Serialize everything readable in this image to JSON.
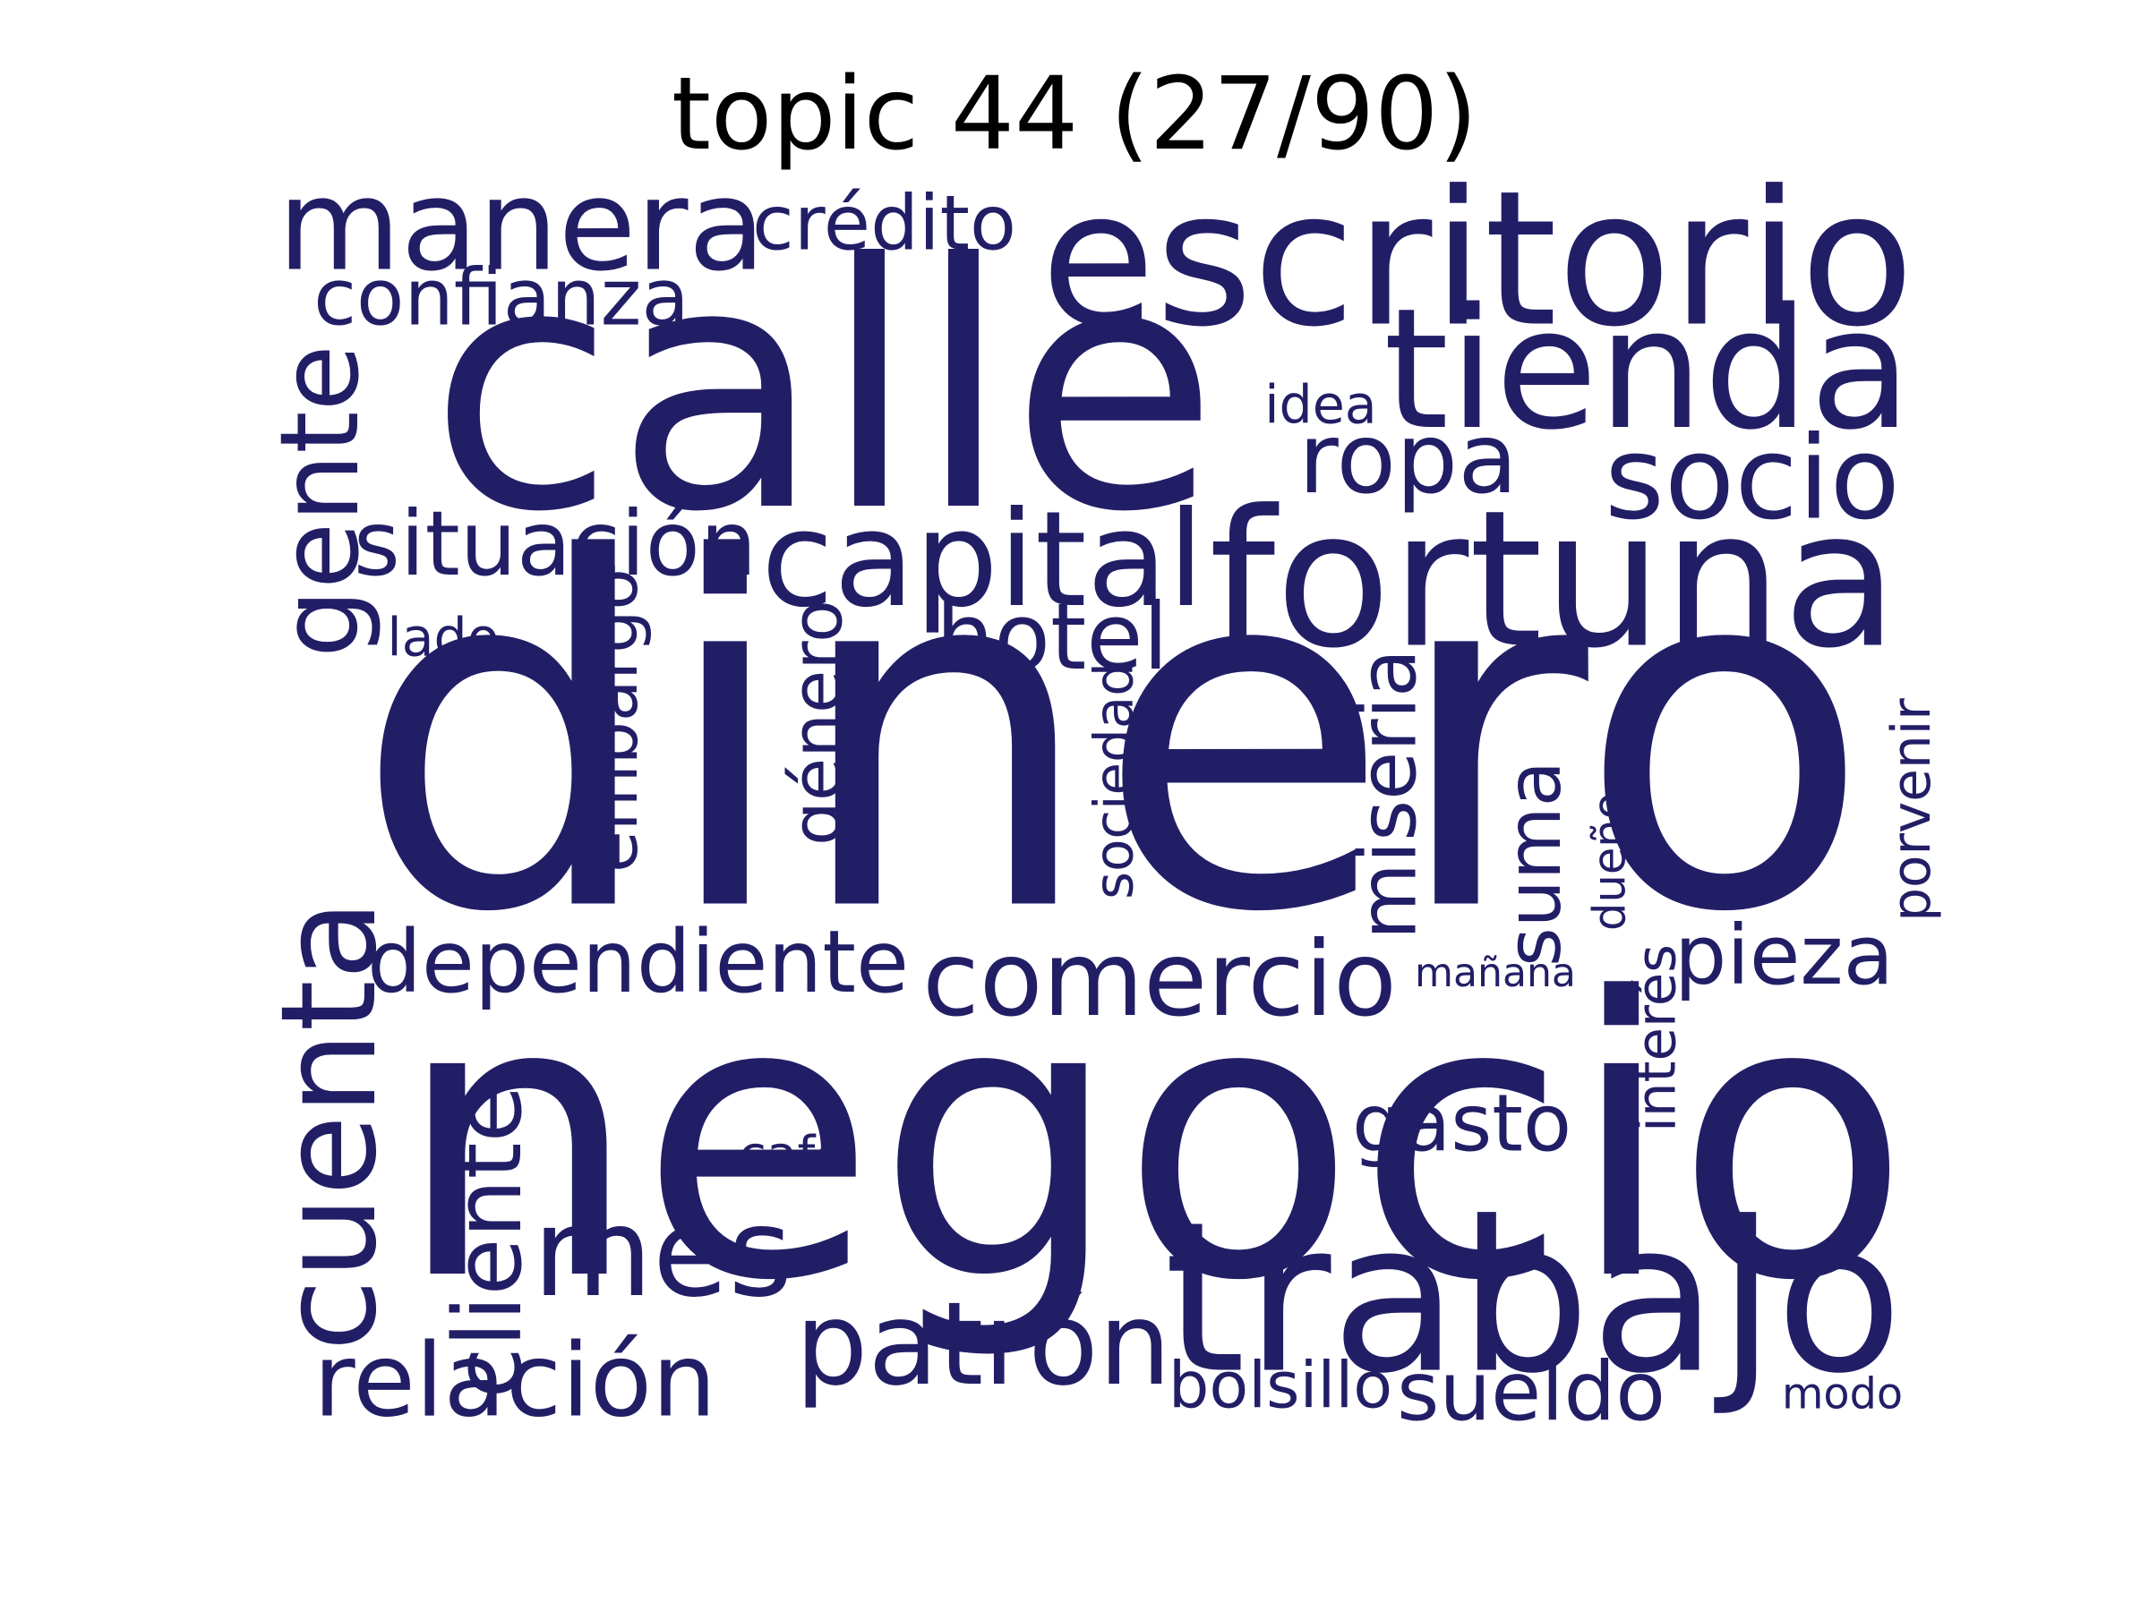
{
  "title": "topic 44 (27/90)",
  "word_color": "#221e66",
  "background": "#ffffff",
  "words": [
    {
      "id": "dinero",
      "text": "dinero"
    },
    {
      "id": "negocio",
      "text": "negocio"
    },
    {
      "id": "calle",
      "text": "calle"
    },
    {
      "id": "escritorio",
      "text": "escritorio"
    },
    {
      "id": "fortuna",
      "text": "fortuna"
    },
    {
      "id": "trabajo",
      "text": "trabajo"
    },
    {
      "id": "tienda",
      "text": "tienda"
    },
    {
      "id": "manera",
      "text": "manera"
    },
    {
      "id": "cuenta",
      "text": "cuenta"
    },
    {
      "id": "capital",
      "text": "capital"
    },
    {
      "id": "mes",
      "text": "mes"
    },
    {
      "id": "comercio",
      "text": "comercio"
    },
    {
      "id": "patron",
      "text": "patrón"
    },
    {
      "id": "socio",
      "text": "socio"
    },
    {
      "id": "gente",
      "text": "gente"
    },
    {
      "id": "ropa",
      "text": "ropa"
    },
    {
      "id": "dependiente",
      "text": "dependiente"
    },
    {
      "id": "relacion",
      "text": "relación"
    },
    {
      "id": "suma",
      "text": "suma"
    },
    {
      "id": "sueldo",
      "text": "sueldo"
    },
    {
      "id": "situacion",
      "text": "situación"
    },
    {
      "id": "hotel",
      "text": "hotel"
    },
    {
      "id": "pieza",
      "text": "pieza"
    },
    {
      "id": "miseria",
      "text": "miseria"
    },
    {
      "id": "embargo",
      "text": "embargo"
    },
    {
      "id": "confianza",
      "text": "confianza"
    },
    {
      "id": "gasto",
      "text": "gasto"
    },
    {
      "id": "cliente",
      "text": "cliente"
    },
    {
      "id": "genero",
      "text": "género"
    },
    {
      "id": "credito",
      "text": "crédito"
    },
    {
      "id": "sociedad",
      "text": "sociedad"
    },
    {
      "id": "dueno",
      "text": "dueño"
    },
    {
      "id": "interes",
      "text": "interés"
    },
    {
      "id": "porvenir",
      "text": "porvenir"
    },
    {
      "id": "bolsillo",
      "text": "bolsillo"
    },
    {
      "id": "manana",
      "text": "mañana"
    },
    {
      "id": "idea",
      "text": "idea"
    },
    {
      "id": "lado",
      "text": "lado"
    },
    {
      "id": "cafe",
      "text": "café"
    },
    {
      "id": "modo",
      "text": "modo"
    }
  ]
}
